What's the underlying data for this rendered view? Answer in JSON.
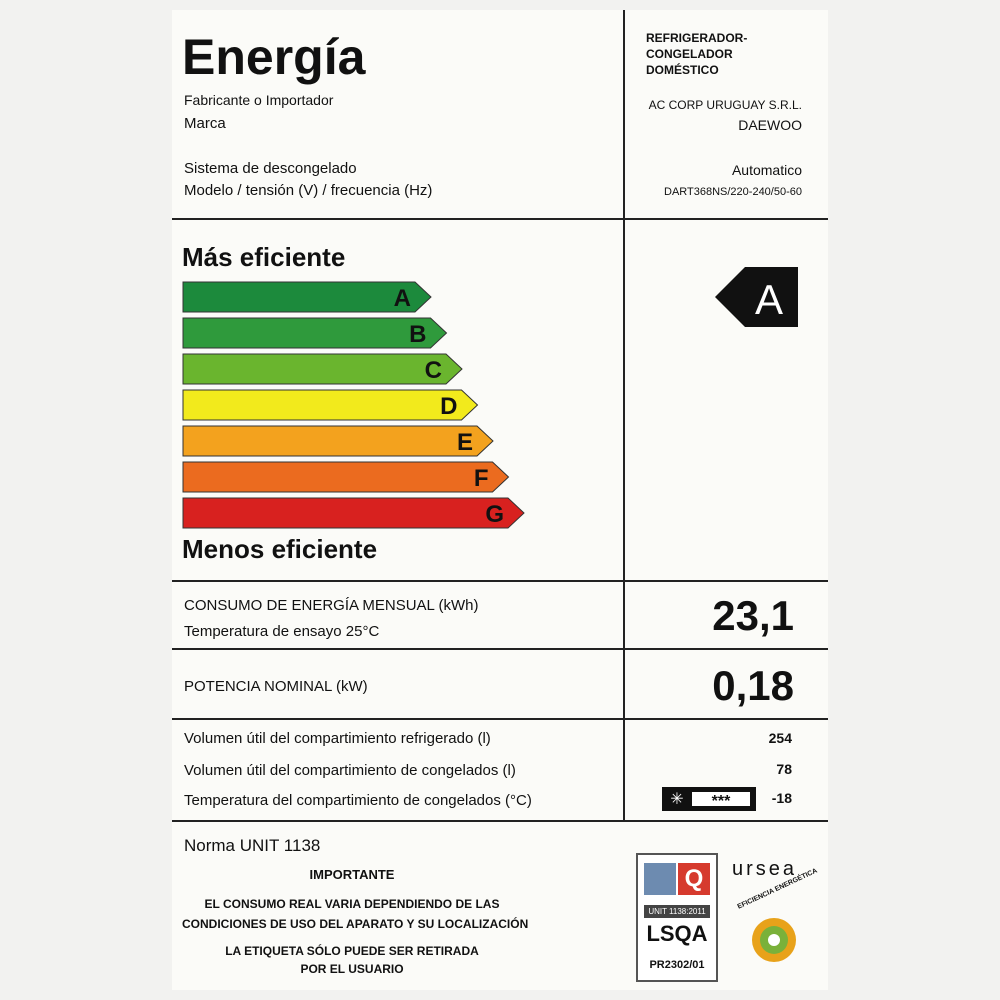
{
  "header": {
    "title": "Energía",
    "product_type": [
      "REFRIGERADOR-",
      "CONGELADOR",
      "DOMÉSTICO"
    ]
  },
  "fields": [
    {
      "label": "Fabricante o Importador",
      "value": "AC CORP URUGUAY S.R.L."
    },
    {
      "label": "Marca",
      "value": "DAEWOO"
    },
    {
      "label": "Sistema de descongelado",
      "value": "Automatico"
    },
    {
      "label": "Modelo / tensión (V) / frecuencia (Hz)",
      "value": "DART368NS/220-240/50-60"
    }
  ],
  "scale": {
    "top_label": "Más eficiente",
    "bottom_label": "Menos eficiente",
    "classes": [
      "A",
      "B",
      "C",
      "D",
      "E",
      "F",
      "G"
    ],
    "colors": [
      "#1c8a3c",
      "#2f9a3c",
      "#6ab52e",
      "#f2ea1c",
      "#f3a21e",
      "#eb6b1f",
      "#d8211f"
    ],
    "rating": "A"
  },
  "consumption": {
    "label": "CONSUMO DE ENERGÍA MENSUAL (kWh)",
    "sublabel": "Temperatura de ensayo  25°C",
    "value": "23,1"
  },
  "power": {
    "label": "POTENCIA NOMINAL (kW)",
    "value": "0,18"
  },
  "volumes": [
    {
      "label": "Volumen útil del compartimiento refrigerado (l)",
      "value": "254"
    },
    {
      "label": "Volumen útil del compartimiento de congelados (l)",
      "value": "78"
    },
    {
      "label": "Temperatura del compartimiento de congelados (°C)",
      "value": "-18"
    }
  ],
  "footer": {
    "norma": "Norma UNIT 1138",
    "important": "IMPORTANTE",
    "notice1": [
      "EL CONSUMO REAL VARIA DEPENDIENDO DE LAS",
      "CONDICIONES DE USO DEL APARATO Y SU LOCALIZACIÓN"
    ],
    "notice2": [
      "LA ETIQUETA SÓLO PUEDE SER RETIRADA",
      "POR EL USUARIO"
    ],
    "cert_norm": "UNIT 1138:2011",
    "cert_name": "LSQA",
    "cert_code": "PR2302/01",
    "agency": "ursea",
    "seal": "EFICIENCIA ENERGÉTICA"
  }
}
